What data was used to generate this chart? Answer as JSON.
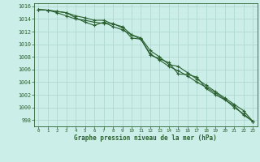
{
  "title": "Graphe pression niveau de la mer (hPa)",
  "background_color": "#cceee8",
  "grid_color": "#aad4cc",
  "line_color": "#2a6030",
  "xlim": [
    -0.5,
    23.5
  ],
  "ylim": [
    997.0,
    1016.5
  ],
  "yticks": [
    998,
    1000,
    1002,
    1004,
    1006,
    1008,
    1010,
    1012,
    1014,
    1016
  ],
  "xticks": [
    0,
    1,
    2,
    3,
    4,
    5,
    6,
    7,
    8,
    9,
    10,
    11,
    12,
    13,
    14,
    15,
    16,
    17,
    18,
    19,
    20,
    21,
    22,
    23
  ],
  "series1": [
    1015.5,
    1015.4,
    1015.0,
    1014.5,
    1014.0,
    1013.8,
    1013.5,
    1013.3,
    1013.3,
    1012.6,
    1011.0,
    1010.8,
    1008.3,
    1007.7,
    1007.1,
    1005.3,
    1005.2,
    1004.8,
    1003.0,
    1002.0,
    1001.2,
    1000.3,
    998.8,
    997.8
  ],
  "series2": [
    1015.5,
    1015.4,
    1015.2,
    1015.0,
    1014.2,
    1013.5,
    1013.0,
    1013.5,
    1012.8,
    1012.3,
    1011.5,
    1010.8,
    1008.5,
    1007.5,
    1006.5,
    1005.8,
    1005.0,
    1004.0,
    1003.2,
    1002.3,
    1001.3,
    1000.0,
    999.0,
    997.8
  ],
  "series3": [
    1015.5,
    1015.4,
    1015.2,
    1015.0,
    1014.5,
    1014.2,
    1013.8,
    1013.8,
    1013.2,
    1012.8,
    1011.5,
    1011.0,
    1009.0,
    1008.0,
    1006.8,
    1006.5,
    1005.5,
    1004.5,
    1003.5,
    1002.5,
    1001.5,
    1000.5,
    999.5,
    997.8
  ]
}
